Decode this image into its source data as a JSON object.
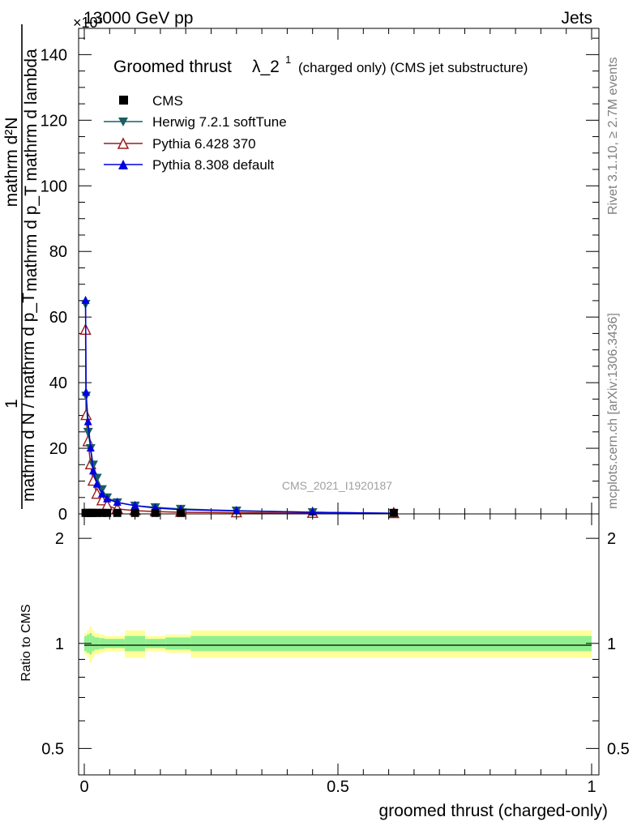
{
  "header": {
    "energy_label": "13000 GeV pp",
    "process_label": "Jets",
    "exponent_label": "×10³"
  },
  "side_labels": {
    "rivet": "Rivet 3.1.10, ≥ 2.7M events",
    "mcplots": "mcplots.cern.ch [arXiv:1306.3436]"
  },
  "chart_data": {
    "type": "line",
    "title": "Groomed thrust λ_2¹ (charged only) (CMS jet substructure)",
    "title_main": "Groomed thrust",
    "title_lambda": "λ_2",
    "title_sup": "1",
    "title_suffix": "(charged only) (CMS jet substructure)",
    "watermark": "CMS_2021_I1920187",
    "xlabel": "groomed thrust (charged-only)",
    "ylabel_numerator": "1",
    "ylabel_denominator": "mathrm d N / mathrm d p_T",
    "ylabel_right_numerator": "mathrm d²N",
    "ylabel_right_denominator": "mathrm d p_T mathrm d lambda",
    "xlim": [
      0,
      1
    ],
    "ylim": [
      0,
      148
    ],
    "y_scale_note": "values in units of 10³",
    "x_ticks": [
      {
        "value": 0,
        "label": "0"
      },
      {
        "value": 0.5,
        "label": "0.5"
      },
      {
        "value": 1,
        "label": "1"
      }
    ],
    "y_ticks": [
      {
        "value": 0,
        "label": "0"
      },
      {
        "value": 20,
        "label": "20"
      },
      {
        "value": 40,
        "label": "40"
      },
      {
        "value": 60,
        "label": "60"
      },
      {
        "value": 80,
        "label": "80"
      },
      {
        "value": 100,
        "label": "100"
      },
      {
        "value": 120,
        "label": "120"
      },
      {
        "value": 140,
        "label": "140"
      }
    ],
    "series": [
      {
        "name": "CMS",
        "color": "#000000",
        "marker": "square",
        "x": [
          0.0025,
          0.0075,
          0.0125,
          0.0175,
          0.025,
          0.035,
          0.045,
          0.065,
          0.1,
          0.14,
          0.19,
          0.61
        ],
        "y": [
          0.3,
          0.3,
          0.3,
          0.3,
          0.3,
          0.3,
          0.3,
          0.3,
          0.3,
          0.3,
          0.3,
          0.3
        ]
      },
      {
        "name": "Herwig 7.2.1 softTune",
        "color": "#1a5e60",
        "marker": "triangle-down",
        "x": [
          0.0025,
          0.0035,
          0.0075,
          0.0125,
          0.0175,
          0.025,
          0.035,
          0.045,
          0.065,
          0.1,
          0.14,
          0.19,
          0.3,
          0.45,
          0.61
        ],
        "y": [
          64,
          36,
          25,
          20,
          15,
          11,
          7.5,
          5,
          3.5,
          2.5,
          2,
          1.5,
          1,
          0.5,
          0.2
        ]
      },
      {
        "name": "Pythia 6.428 370",
        "color": "#9b1b1b",
        "marker": "triangle-open",
        "x": [
          0.0025,
          0.0035,
          0.0075,
          0.0125,
          0.0175,
          0.025,
          0.035,
          0.045,
          0.065,
          0.1,
          0.14,
          0.19,
          0.3,
          0.45,
          0.61
        ],
        "y": [
          56,
          30,
          22,
          15,
          10,
          6,
          4,
          2.5,
          1.5,
          1,
          0.7,
          0.5,
          0.35,
          0.2,
          0.1
        ]
      },
      {
        "name": "Pythia 8.308 default",
        "color": "#0000e0",
        "marker": "triangle-up",
        "x": [
          0.0025,
          0.0035,
          0.0075,
          0.0125,
          0.0175,
          0.025,
          0.035,
          0.045,
          0.065,
          0.1,
          0.14,
          0.19,
          0.3,
          0.45,
          0.61
        ],
        "y": [
          65,
          37,
          28,
          20,
          13,
          9,
          6,
          4.5,
          3.5,
          2.5,
          1.8,
          1.3,
          0.9,
          0.5,
          0.2
        ]
      }
    ],
    "ratio_panel": {
      "ylabel": "Ratio to CMS",
      "ylim": [
        0.42,
        2.35
      ],
      "y_ticks_major": [
        {
          "value": 0.5,
          "label": "0.5"
        },
        {
          "value": 1,
          "label": "1"
        },
        {
          "value": 2,
          "label": "2"
        }
      ],
      "reference_line": 1,
      "bands": [
        {
          "x0": 0.0,
          "x1": 0.005,
          "inner": 0.05,
          "outer": 0.07
        },
        {
          "x0": 0.005,
          "x1": 0.01,
          "inner": 0.06,
          "outer": 0.09
        },
        {
          "x0": 0.01,
          "x1": 0.015,
          "inner": 0.07,
          "outer": 0.12
        },
        {
          "x0": 0.015,
          "x1": 0.02,
          "inner": 0.05,
          "outer": 0.09
        },
        {
          "x0": 0.02,
          "x1": 0.03,
          "inner": 0.04,
          "outer": 0.07
        },
        {
          "x0": 0.03,
          "x1": 0.04,
          "inner": 0.035,
          "outer": 0.06
        },
        {
          "x0": 0.04,
          "x1": 0.08,
          "inner": 0.03,
          "outer": 0.05
        },
        {
          "x0": 0.08,
          "x1": 0.12,
          "inner": 0.05,
          "outer": 0.09
        },
        {
          "x0": 0.12,
          "x1": 0.16,
          "inner": 0.03,
          "outer": 0.05
        },
        {
          "x0": 0.16,
          "x1": 0.21,
          "inner": 0.04,
          "outer": 0.06
        },
        {
          "x0": 0.21,
          "x1": 1.0,
          "inner": 0.05,
          "outer": 0.09
        }
      ],
      "band_inner_color": "#90f090",
      "band_outer_color": "#ffff99"
    },
    "legend_position": "top-left",
    "grid": false
  }
}
